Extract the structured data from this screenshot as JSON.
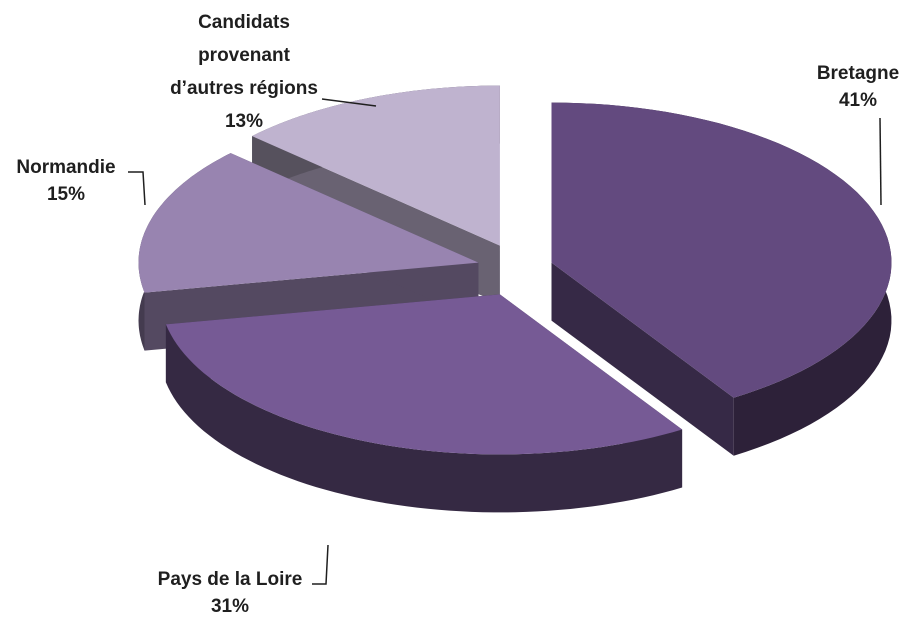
{
  "chart_data": {
    "type": "pie",
    "categories": [
      "Bretagne",
      "Pays de la Loire",
      "Normandie",
      "Candidats provenant d’autres régions"
    ],
    "values": [
      41,
      31,
      15,
      13
    ],
    "value_labels": [
      "41%",
      "31%",
      "15%",
      "13%"
    ],
    "colors": [
      "#634a7f",
      "#765a95",
      "#9884b0",
      "#bfb3cf"
    ]
  }
}
